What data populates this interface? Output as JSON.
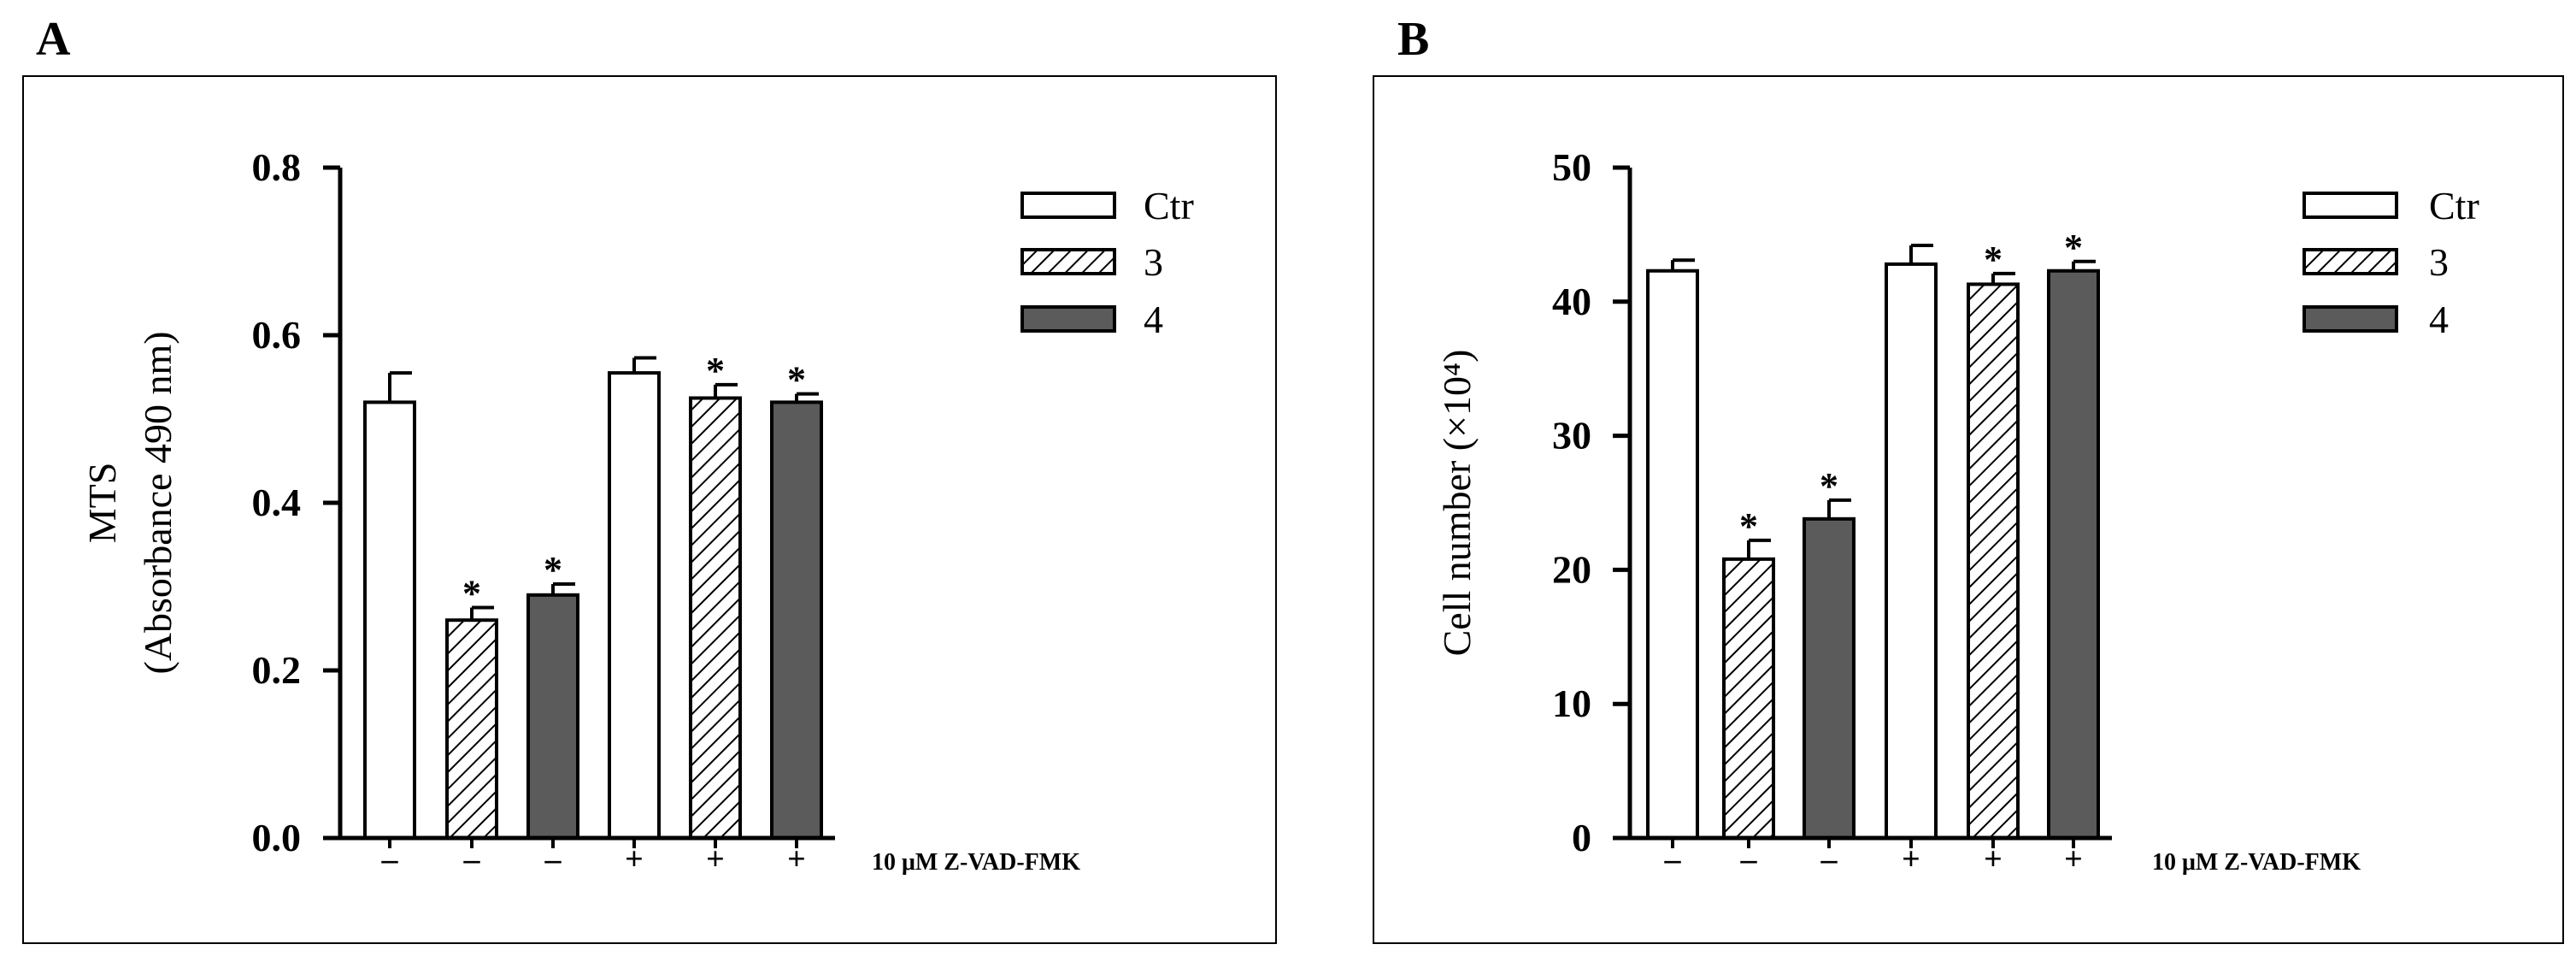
{
  "panels": [
    {
      "letter": "A"
    },
    {
      "letter": "B"
    }
  ],
  "chart_data": [
    {
      "type": "bar",
      "ylabel_lines": [
        "MTS",
        "(Absorbance 490 nm)"
      ],
      "ylim": [
        0,
        0.8
      ],
      "yticks": [
        0.0,
        0.2,
        0.4,
        0.6,
        0.8
      ],
      "ytick_labels": [
        "0.0",
        "0.2",
        "0.4",
        "0.6",
        "0.8"
      ],
      "treatment_label": "10 μM Z-VAD-FMK",
      "treatment_marks": [
        "–",
        "–",
        "–",
        "+",
        "+",
        "+"
      ],
      "legend": [
        "Ctr",
        "3",
        "4"
      ],
      "legend_position": "top-right",
      "bars": [
        {
          "series": "Ctr",
          "value": 0.52,
          "error": 0.035,
          "significant": false
        },
        {
          "series": "3",
          "value": 0.26,
          "error": 0.015,
          "significant": true
        },
        {
          "series": "4",
          "value": 0.29,
          "error": 0.013,
          "significant": true
        },
        {
          "series": "Ctr",
          "value": 0.555,
          "error": 0.018,
          "significant": false
        },
        {
          "series": "3",
          "value": 0.525,
          "error": 0.016,
          "significant": true
        },
        {
          "series": "4",
          "value": 0.52,
          "error": 0.01,
          "significant": true
        }
      ]
    },
    {
      "type": "bar",
      "ylabel": "Cell number (×10⁴)",
      "ylim": [
        0,
        50
      ],
      "yticks": [
        0,
        10,
        20,
        30,
        40,
        50
      ],
      "ytick_labels": [
        "0",
        "10",
        "20",
        "30",
        "40",
        "50"
      ],
      "treatment_label": "10 μM Z-VAD-FMK",
      "treatment_marks": [
        "–",
        "–",
        "–",
        "+",
        "+",
        "+"
      ],
      "legend": [
        "Ctr",
        "3",
        "4"
      ],
      "legend_position": "top-right",
      "bars": [
        {
          "series": "Ctr",
          "value": 42.3,
          "error": 0.8,
          "significant": false
        },
        {
          "series": "3",
          "value": 20.8,
          "error": 1.4,
          "significant": true
        },
        {
          "series": "4",
          "value": 23.8,
          "error": 1.4,
          "significant": true
        },
        {
          "series": "Ctr",
          "value": 42.8,
          "error": 1.4,
          "significant": false
        },
        {
          "series": "3",
          "value": 41.3,
          "error": 0.8,
          "significant": true
        },
        {
          "series": "4",
          "value": 42.3,
          "error": 0.7,
          "significant": true
        }
      ]
    }
  ],
  "styles": {
    "Ctr": {
      "fill": "#ffffff",
      "pattern": "none"
    },
    "3": {
      "fill": "#ffffff",
      "pattern": "diagonal-hatch"
    },
    "4": {
      "fill": "#5b5b5b",
      "pattern": "none"
    }
  },
  "significance_mark": "*"
}
